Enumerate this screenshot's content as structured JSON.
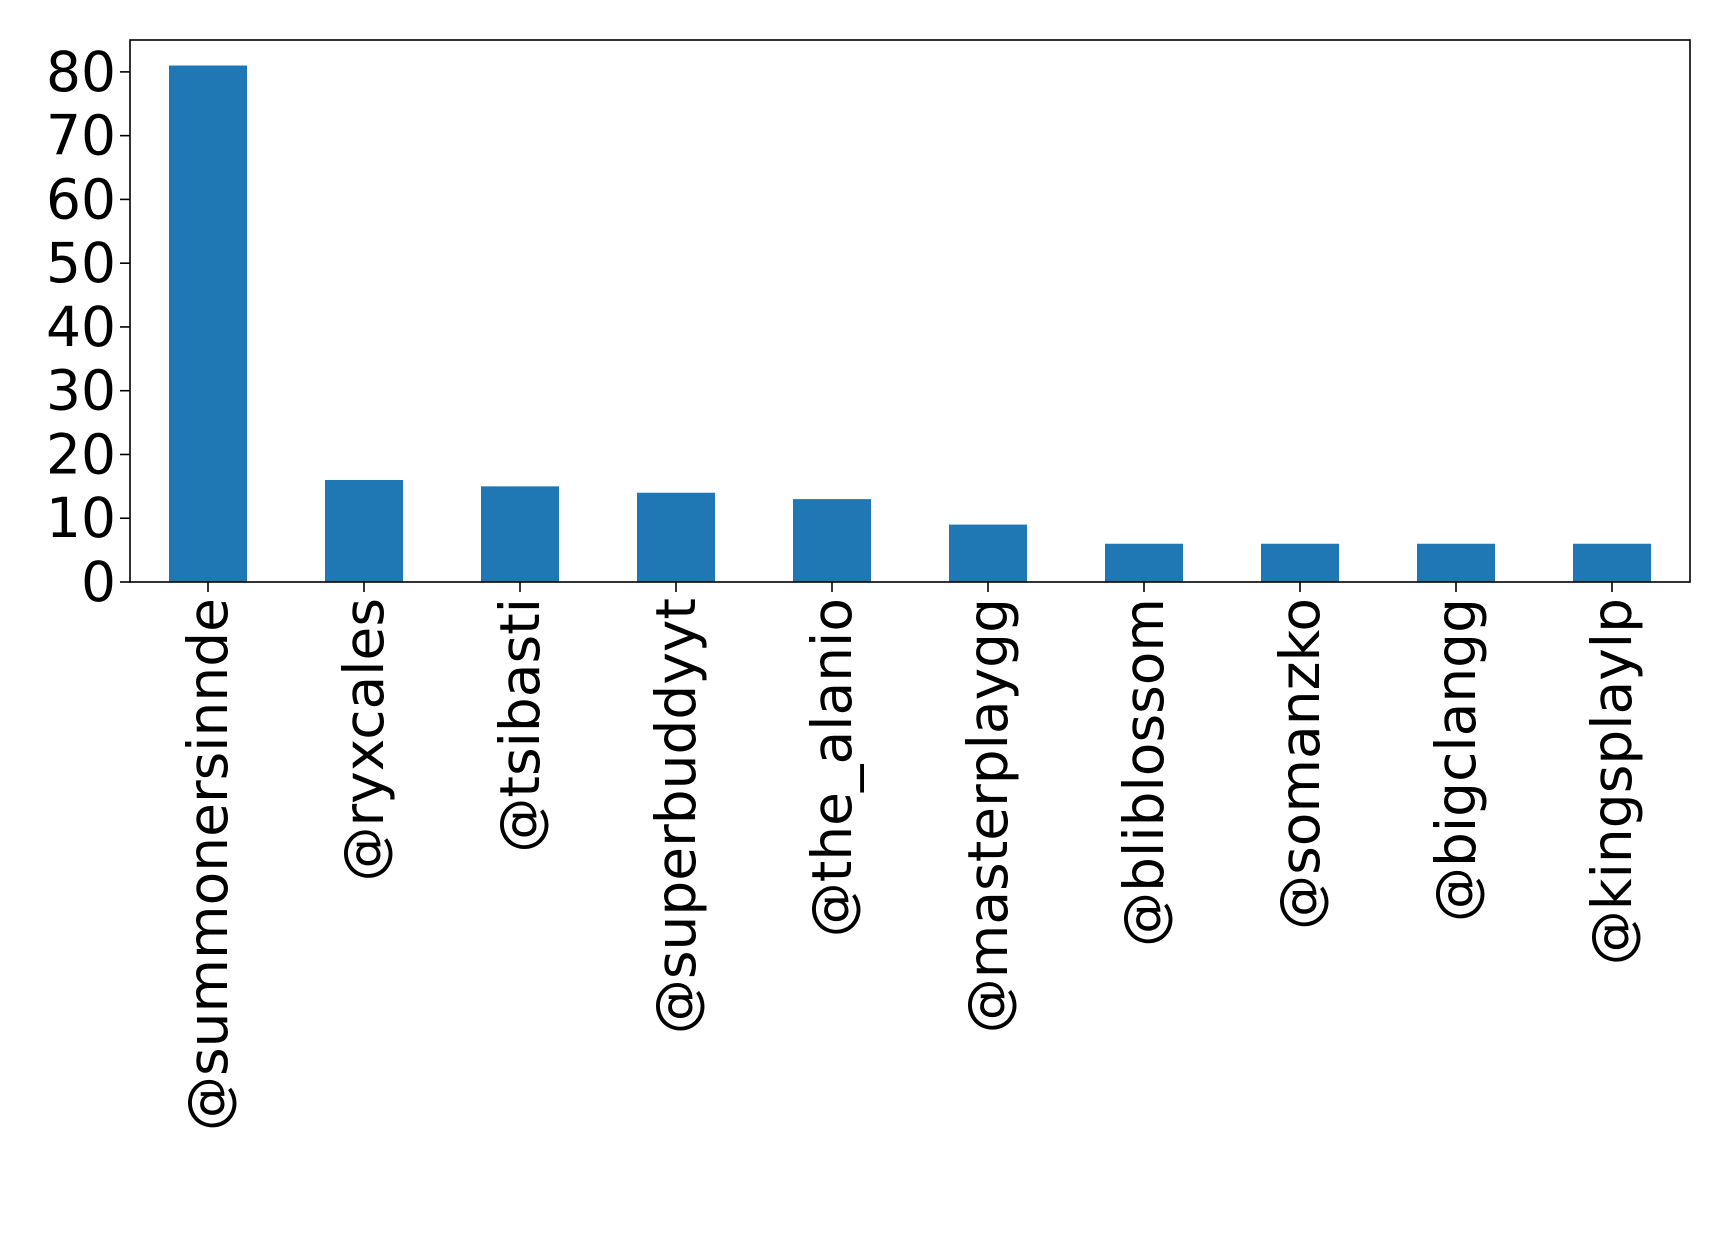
{
  "chart_data": {
    "type": "bar",
    "title": "",
    "xlabel": "",
    "ylabel": "",
    "categories": [
      "@summonersinnde",
      "@ryxcales",
      "@tsibasti",
      "@superbuddyyt",
      "@the_alanio",
      "@masterplaygg",
      "@bliblossom",
      "@somanzko",
      "@bigclangg",
      "@kingsplaylp"
    ],
    "values": [
      81,
      16,
      15,
      14,
      13,
      9,
      6,
      6,
      6,
      6
    ],
    "ylim": [
      0,
      85
    ],
    "yticks": [
      0,
      10,
      20,
      30,
      40,
      50,
      60,
      70,
      80
    ],
    "x_tick_rotation": "vertical",
    "grid": false,
    "legend": "none",
    "colors": {
      "bar": "#1f77b4",
      "axis": "#000000",
      "background": "#ffffff"
    }
  }
}
